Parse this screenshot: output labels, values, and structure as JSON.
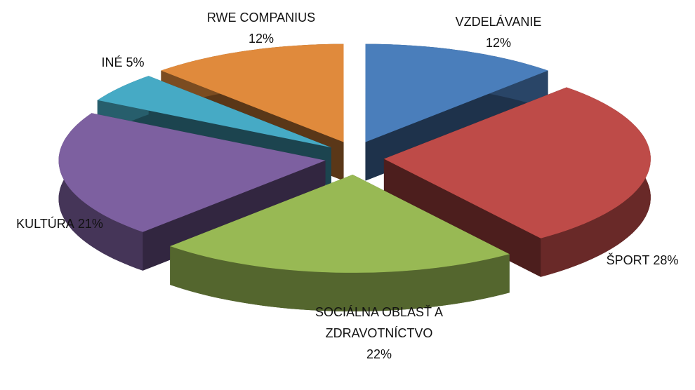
{
  "chart_data": {
    "type": "pie3d",
    "categories": [
      "VZDELÁVANIE",
      "ŠPORT",
      "SOCIÁLNA OBLASŤ A ZDRAVOTNÍCTVO",
      "KULTÚRA",
      "INÉ",
      "RWE COMPANIUS"
    ],
    "values": [
      12,
      28,
      22,
      21,
      5,
      12
    ],
    "value_labels": [
      "12%",
      "28%",
      "22%",
      "21%",
      "5%",
      "12%"
    ],
    "colors": [
      "#4a7ebb",
      "#be4b48",
      "#98b954",
      "#7d60a0",
      "#46aac5",
      "#e08a3c"
    ]
  }
}
